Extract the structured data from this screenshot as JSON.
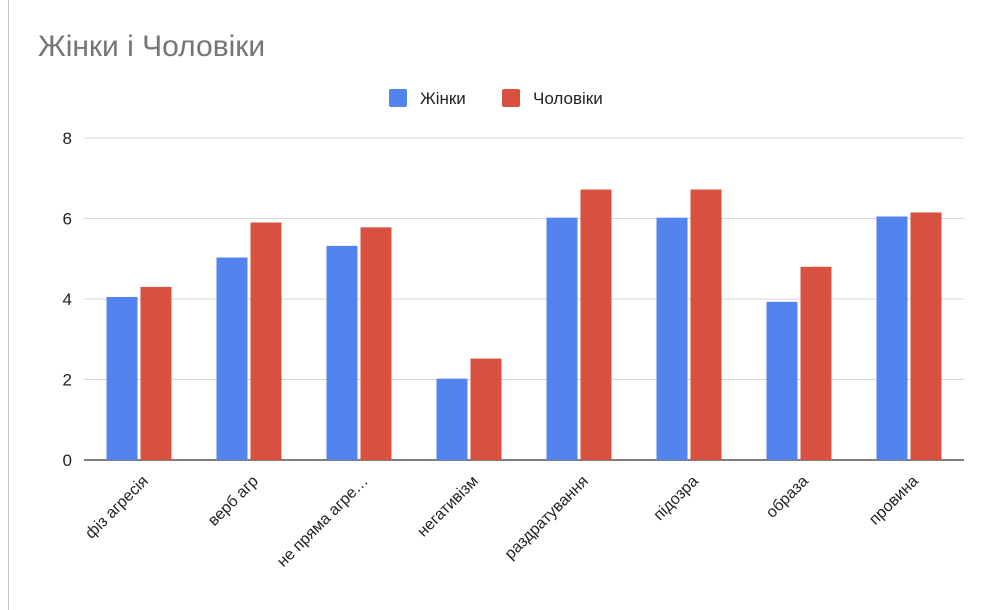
{
  "chart_data": {
    "type": "bar",
    "title": "Жінки і Чоловіки",
    "xlabel": "",
    "ylabel": "",
    "categories": [
      "фіз агресія",
      "верб агр",
      "не пряма агре…",
      "негативізм",
      "раздратування",
      "підозра",
      "образа",
      "провина"
    ],
    "series": [
      {
        "name": "Жінки",
        "color": "#5383ec",
        "values": [
          4.05,
          5.03,
          5.32,
          2.02,
          6.02,
          6.02,
          3.93,
          6.05
        ]
      },
      {
        "name": "Чоловіки",
        "color": "#d85140",
        "values": [
          4.3,
          5.9,
          5.78,
          2.52,
          6.72,
          6.72,
          4.8,
          6.15
        ]
      }
    ],
    "ylim": [
      0,
      8
    ],
    "yticks": [
      0,
      2,
      4,
      6,
      8
    ],
    "grid": true,
    "legend_position": "top"
  }
}
